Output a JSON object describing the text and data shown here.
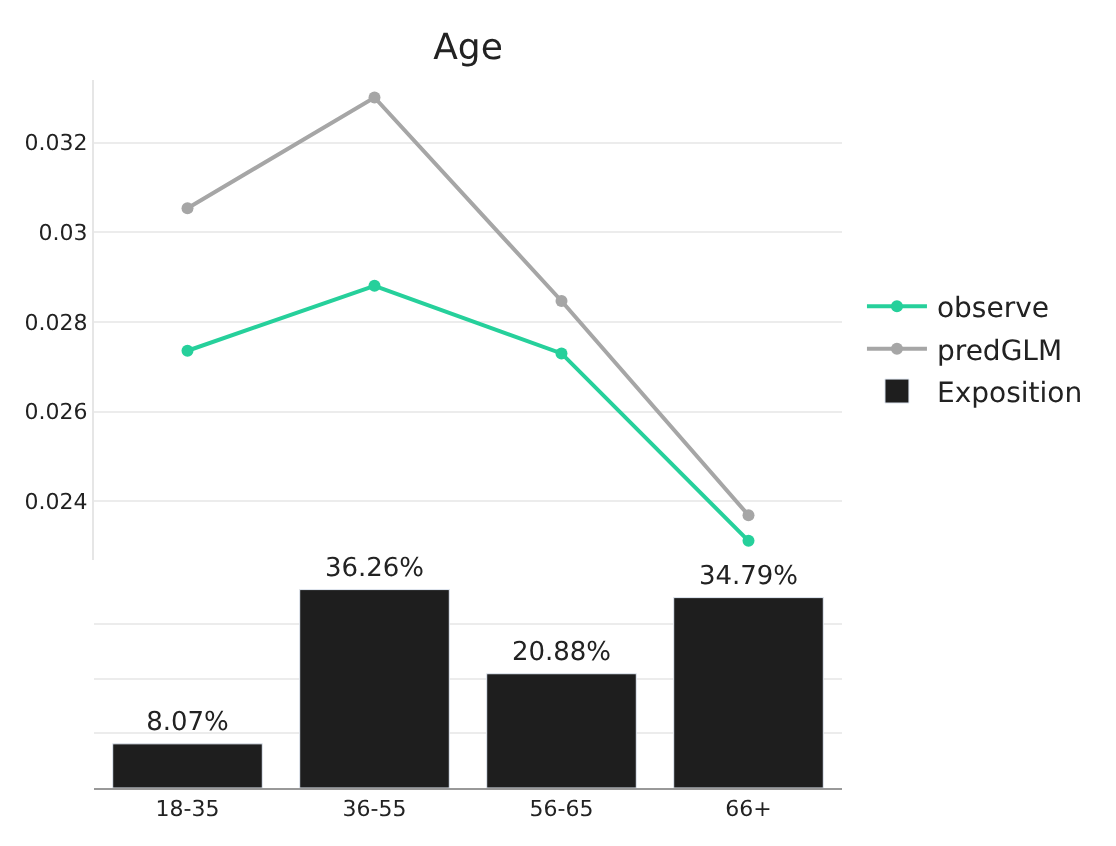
{
  "chart_data": [
    {
      "type": "line",
      "title": "Age",
      "categories": [
        null,
        null,
        null,
        null
      ],
      "series": [
        {
          "name": "observe",
          "color": "#26d09b",
          "values": [
            0.02736,
            0.02881,
            0.0273,
            0.02312
          ]
        },
        {
          "name": "predGLM",
          "color": "#a6a6a6",
          "values": [
            0.03054,
            0.03301,
            0.02847,
            0.02369
          ]
        }
      ],
      "ylim": [
        0.0227,
        0.0334
      ],
      "yticks": [
        0.024,
        0.026,
        0.028,
        0.03,
        0.032
      ],
      "grid": "y",
      "marker": "circle",
      "line_style": "solid",
      "legend": "right",
      "tick_labels": "y"
    },
    {
      "type": "bar",
      "categories": [
        "18-35",
        "36-55",
        "56-65",
        "66+"
      ],
      "series": [
        {
          "name": "Exposition",
          "color": "#1e1e1e",
          "values": [
            8.07,
            36.26,
            20.88,
            34.79
          ],
          "value_labels": [
            "8.07%",
            "36.26%",
            "20.88%",
            "34.79%"
          ]
        }
      ],
      "yticks": [
        {
          "value": 10,
          "label": null
        },
        {
          "value": 20,
          "label": null
        },
        {
          "value": 30,
          "label": null
        }
      ],
      "grid": "y",
      "legend": "right",
      "tick_labels": "x"
    }
  ]
}
